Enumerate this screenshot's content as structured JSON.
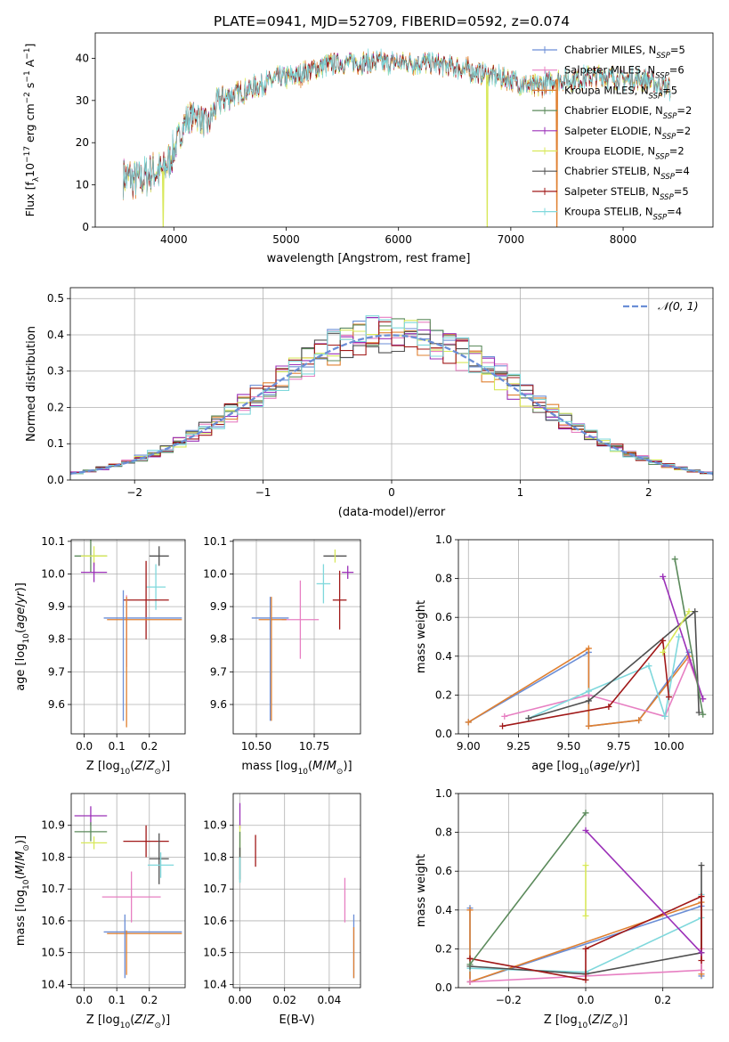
{
  "figure_title": "PLATE=0941, MJD=52709, FIBERID=0592, z=0.074",
  "colors": {
    "Chabrier MILES": "#6b8ed6",
    "Salpeter MILES": "#e77fc2",
    "Kroupa MILES": "#e08030",
    "Chabrier ELODIE": "#5b8a5b",
    "Salpeter ELODIE": "#9b30b8",
    "Kroupa ELODIE": "#d8e85a",
    "Chabrier STELIB": "#505050",
    "Salpeter STELIB": "#a01818",
    "Kroupa STELIB": "#7fd8dc"
  },
  "chart_data": [
    {
      "id": "spectrum",
      "type": "line",
      "xlabel": "wavelength [Angstrom, rest frame]",
      "ylabel": "Flux [f",
      "xlim": [
        3300,
        8800
      ],
      "ylim": [
        0,
        46
      ],
      "xticks": [
        4000,
        5000,
        6000,
        7000,
        8000
      ],
      "yticks": [
        0,
        10,
        20,
        30,
        40
      ],
      "legend": "top-right",
      "series": [
        {
          "name": "Chabrier MILES, N",
          "nssp": "=5",
          "color": "#6b8ed6"
        },
        {
          "name": "Salpeter MILES, N",
          "nssp": "=6",
          "color": "#e77fc2"
        },
        {
          "name": "Kroupa MILES, N",
          "nssp": "=5",
          "color": "#e08030"
        },
        {
          "name": "Chabrier ELODIE, N",
          "nssp": "=2",
          "color": "#5b8a5b"
        },
        {
          "name": "Salpeter ELODIE, N",
          "nssp": "=2",
          "color": "#9b30b8"
        },
        {
          "name": "Kroupa ELODIE, N",
          "nssp": "=2",
          "color": "#d8e85a"
        },
        {
          "name": "Chabrier STELIB, N",
          "nssp": "=4",
          "color": "#505050"
        },
        {
          "name": "Salpeter STELIB, N",
          "nssp": "=5",
          "color": "#a01818"
        },
        {
          "name": "Kroupa STELIB, N",
          "nssp": "=4",
          "color": "#7fd8dc"
        }
      ],
      "continuum": [
        [
          3550,
          12
        ],
        [
          3700,
          11
        ],
        [
          3800,
          13
        ],
        [
          3900,
          13
        ],
        [
          4000,
          18
        ],
        [
          4100,
          25
        ],
        [
          4200,
          27
        ],
        [
          4300,
          24
        ],
        [
          4400,
          30
        ],
        [
          4500,
          31
        ],
        [
          4700,
          33
        ],
        [
          4900,
          35
        ],
        [
          5100,
          36
        ],
        [
          5300,
          38
        ],
        [
          5500,
          39
        ],
        [
          5800,
          39
        ],
        [
          6000,
          39
        ],
        [
          6200,
          39
        ],
        [
          6500,
          38
        ],
        [
          6800,
          36
        ],
        [
          7000,
          35
        ],
        [
          7200,
          33
        ],
        [
          7400,
          35
        ],
        [
          7600,
          35
        ],
        [
          7800,
          36
        ],
        [
          8000,
          35
        ],
        [
          8200,
          35
        ],
        [
          8400,
          33
        ]
      ],
      "spikes": [
        [
          3905,
          0,
          "#d8e85a"
        ],
        [
          6790,
          0,
          "#d8e85a"
        ],
        [
          7410,
          0,
          "#e08030"
        ]
      ]
    },
    {
      "id": "residuals",
      "type": "line",
      "xlabel": "(data-model)/error",
      "ylabel": "Normed distribution",
      "xlim": [
        -2.5,
        2.5
      ],
      "ylim": [
        0,
        0.53
      ],
      "xticks": [
        -2,
        -1,
        0,
        1,
        2
      ],
      "xticklabels": [
        "−2",
        "−1",
        "0",
        "1",
        "2"
      ],
      "yticks": [
        0.0,
        0.1,
        0.2,
        0.3,
        0.4,
        0.5
      ],
      "yticklabels": [
        "0.0",
        "0.1",
        "0.2",
        "0.3",
        "0.4",
        "0.5"
      ],
      "legend_label": "𝒩(0, 1)",
      "legend": "top-right",
      "gaussian_color": "#6b8ed6"
    },
    {
      "id": "age-Z",
      "type": "scatter",
      "xlabel": "Z [log",
      "ylabel": "age  [log",
      "xlim": [
        -0.04,
        0.31
      ],
      "ylim": [
        9.51,
        10.105
      ],
      "xticks": [
        0.0,
        0.1,
        0.2
      ],
      "xticklabels": [
        "0.0",
        "0.1",
        "0.2"
      ],
      "yticks": [
        9.6,
        9.7,
        9.8,
        9.9,
        10.0,
        10.1
      ],
      "yticklabels": [
        "9.6",
        "9.7",
        "9.8",
        "9.9",
        "10.0",
        "10.1"
      ],
      "points": [
        {
          "x": 0.02,
          "y": 10.055,
          "xerr": 0.05,
          "yerr": 0.05,
          "color": "#5b8a5b"
        },
        {
          "x": 0.03,
          "y": 10.055,
          "xerr": 0.04,
          "yerr": 0.03,
          "color": "#d8e85a"
        },
        {
          "x": 0.03,
          "y": 10.005,
          "xerr": 0.04,
          "yerr": 0.03,
          "color": "#9b30b8"
        },
        {
          "x": 0.23,
          "y": 10.055,
          "xerr": 0.03,
          "yerr": 0.03,
          "color": "#505050"
        },
        {
          "x": 0.22,
          "y": 9.96,
          "xerr": 0.03,
          "yerr": 0.07,
          "color": "#7fd8dc"
        },
        {
          "x": 0.19,
          "y": 9.92,
          "xerr": 0.07,
          "yerr": 0.12,
          "color": "#a01818"
        },
        {
          "x": 0.18,
          "y": 9.865,
          "xerr": 0.12,
          "yerr": 0.0,
          "color": "#6b8ed6"
        },
        {
          "x": 0.13,
          "y": 9.825,
          "xerr": 0.0,
          "yerr": 0.11,
          "color": "#e77fc2"
        },
        {
          "x": 0.185,
          "y": 9.86,
          "xerr": 0.115,
          "yerr": 0.0,
          "color": "#e08030"
        },
        {
          "x": 0.12,
          "y": 9.75,
          "xerr": 0.0,
          "yerr": 0.2,
          "color": "#6b8ed6"
        },
        {
          "x": 0.13,
          "y": 9.73,
          "xerr": 0.0,
          "yerr": 0.2,
          "color": "#e08030"
        }
      ]
    },
    {
      "id": "age-mass",
      "type": "scatter",
      "xlabel": "mass [log",
      "ylabel": "",
      "xlim": [
        10.4,
        10.95
      ],
      "ylim": [
        9.51,
        10.105
      ],
      "xticks": [
        10.5,
        10.75
      ],
      "xticklabels": [
        "10.50",
        "10.75"
      ],
      "yticks": [
        9.6,
        9.7,
        9.8,
        9.9,
        10.0,
        10.1
      ],
      "yticklabels": [
        "9.6",
        "9.7",
        "9.8",
        "9.9",
        "10.0",
        "10.1"
      ],
      "points": [
        {
          "x": 10.84,
          "y": 10.055,
          "xerr": 0.05,
          "yerr": 0.0,
          "color": "#505050"
        },
        {
          "x": 10.84,
          "y": 10.055,
          "xerr": 0.0,
          "yerr": 0.02,
          "color": "#d8e85a"
        },
        {
          "x": 10.895,
          "y": 10.005,
          "xerr": 0.025,
          "yerr": 0.02,
          "color": "#9b30b8"
        },
        {
          "x": 10.79,
          "y": 9.97,
          "xerr": 0.03,
          "yerr": 0.06,
          "color": "#7fd8dc"
        },
        {
          "x": 10.86,
          "y": 9.92,
          "xerr": 0.03,
          "yerr": 0.09,
          "color": "#a01818"
        },
        {
          "x": 10.69,
          "y": 9.86,
          "xerr": 0.08,
          "yerr": 0.12,
          "color": "#e77fc2"
        },
        {
          "x": 10.56,
          "y": 9.865,
          "xerr": 0.08,
          "yerr": 0.0,
          "color": "#6b8ed6"
        },
        {
          "x": 10.57,
          "y": 9.86,
          "xerr": 0.06,
          "yerr": 0.0,
          "color": "#e08030"
        },
        {
          "x": 10.56,
          "y": 9.74,
          "xerr": 0.0,
          "yerr": 0.19,
          "color": "#6b8ed6"
        },
        {
          "x": 10.565,
          "y": 9.74,
          "xerr": 0.0,
          "yerr": 0.19,
          "color": "#e08030"
        }
      ]
    },
    {
      "id": "weight-age",
      "type": "line",
      "xlabel": "age  [log",
      "ylabel": "mass weight",
      "xlim": [
        8.95,
        10.22
      ],
      "ylim": [
        0,
        1
      ],
      "xticks": [
        9.0,
        9.25,
        9.5,
        9.75,
        10.0
      ],
      "xticklabels": [
        "9.00",
        "9.25",
        "9.50",
        "9.75",
        "10.00"
      ],
      "yticks": [
        0,
        0.2,
        0.4,
        0.6,
        0.8,
        1.0
      ],
      "yticklabels": [
        "0.0",
        "0.2",
        "0.4",
        "0.6",
        "0.8",
        "1.0"
      ],
      "series": [
        {
          "color": "#6b8ed6",
          "points": [
            [
              9.0,
              0.06
            ],
            [
              9.6,
              0.42
            ],
            [
              9.6,
              0.04
            ],
            [
              9.85,
              0.07
            ],
            [
              10.1,
              0.42
            ]
          ]
        },
        {
          "color": "#e08030",
          "points": [
            [
              9.0,
              0.06
            ],
            [
              9.6,
              0.44
            ],
            [
              9.6,
              0.04
            ],
            [
              9.85,
              0.07
            ],
            [
              10.1,
              0.4
            ]
          ]
        },
        {
          "color": "#e77fc2",
          "points": [
            [
              9.18,
              0.09
            ],
            [
              9.6,
              0.2
            ],
            [
              9.98,
              0.09
            ],
            [
              10.1,
              0.38
            ],
            [
              10.17,
              0.18
            ]
          ]
        },
        {
          "color": "#7fd8dc",
          "points": [
            [
              9.3,
              0.08
            ],
            [
              9.6,
              0.22
            ],
            [
              9.9,
              0.35
            ],
            [
              9.98,
              0.09
            ],
            [
              10.05,
              0.5
            ]
          ]
        },
        {
          "color": "#505050",
          "points": [
            [
              9.3,
              0.08
            ],
            [
              9.6,
              0.17
            ],
            [
              10.13,
              0.63
            ],
            [
              10.15,
              0.11
            ]
          ]
        },
        {
          "color": "#a01818",
          "points": [
            [
              9.17,
              0.04
            ],
            [
              9.7,
              0.14
            ],
            [
              9.97,
              0.48
            ],
            [
              10.0,
              0.19
            ]
          ]
        },
        {
          "color": "#9b30b8",
          "points": [
            [
              9.97,
              0.81
            ],
            [
              10.17,
              0.18
            ]
          ]
        },
        {
          "color": "#5b8a5b",
          "points": [
            [
              10.03,
              0.9
            ],
            [
              10.17,
              0.1
            ]
          ]
        },
        {
          "color": "#d8e85a",
          "points": [
            [
              9.97,
              0.42
            ],
            [
              10.1,
              0.63
            ]
          ]
        }
      ]
    },
    {
      "id": "mass-Z",
      "type": "scatter",
      "xlabel": "Z [log",
      "ylabel": "mass [log",
      "xlim": [
        -0.04,
        0.31
      ],
      "ylim": [
        10.39,
        11.0
      ],
      "xticks": [
        0.0,
        0.1,
        0.2
      ],
      "xticklabels": [
        "0.0",
        "0.1",
        "0.2"
      ],
      "yticks": [
        10.4,
        10.5,
        10.6,
        10.7,
        10.8,
        10.9
      ],
      "yticklabels": [
        "10.4",
        "10.5",
        "10.6",
        "10.7",
        "10.8",
        "10.9"
      ],
      "points": [
        {
          "x": 0.02,
          "y": 10.93,
          "xerr": 0.05,
          "yerr": 0.03,
          "color": "#9b30b8"
        },
        {
          "x": 0.02,
          "y": 10.88,
          "xerr": 0.05,
          "yerr": 0.03,
          "color": "#5b8a5b"
        },
        {
          "x": 0.03,
          "y": 10.845,
          "xerr": 0.04,
          "yerr": 0.02,
          "color": "#d8e85a"
        },
        {
          "x": 0.19,
          "y": 10.85,
          "xerr": 0.07,
          "yerr": 0.05,
          "color": "#a01818"
        },
        {
          "x": 0.23,
          "y": 10.795,
          "xerr": 0.03,
          "yerr": 0.08,
          "color": "#505050"
        },
        {
          "x": 0.235,
          "y": 10.775,
          "xerr": 0.04,
          "yerr": 0.04,
          "color": "#7fd8dc"
        },
        {
          "x": 0.145,
          "y": 10.675,
          "xerr": 0.09,
          "yerr": 0.08,
          "color": "#e77fc2"
        },
        {
          "x": 0.18,
          "y": 10.565,
          "xerr": 0.12,
          "yerr": 0.0,
          "color": "#6b8ed6"
        },
        {
          "x": 0.185,
          "y": 10.56,
          "xerr": 0.115,
          "yerr": 0.0,
          "color": "#e08030"
        },
        {
          "x": 0.125,
          "y": 10.52,
          "xerr": 0.0,
          "yerr": 0.1,
          "color": "#6b8ed6"
        },
        {
          "x": 0.13,
          "y": 10.5,
          "xerr": 0.0,
          "yerr": 0.07,
          "color": "#e08030"
        }
      ]
    },
    {
      "id": "mass-ebv",
      "type": "scatter",
      "xlabel": "E(B-V)",
      "ylabel": "",
      "xlim": [
        -0.003,
        0.054
      ],
      "ylim": [
        10.39,
        11.0
      ],
      "xticks": [
        0.0,
        0.02,
        0.04
      ],
      "xticklabels": [
        "0.00",
        "0.02",
        "0.04"
      ],
      "yticks": [
        10.4,
        10.5,
        10.6,
        10.7,
        10.8,
        10.9
      ],
      "yticklabels": [
        "10.4",
        "10.5",
        "10.6",
        "10.7",
        "10.8",
        "10.9"
      ],
      "points": [
        {
          "x": 0.0,
          "y": 10.93,
          "xerr": 0.0,
          "yerr": 0.04,
          "color": "#9b30b8"
        },
        {
          "x": 0.0,
          "y": 10.85,
          "xerr": 0.0,
          "yerr": 0.05,
          "color": "#d8e85a"
        },
        {
          "x": 0.0,
          "y": 10.8,
          "xerr": 0.0,
          "yerr": 0.08,
          "color": "#5b8a5b"
        },
        {
          "x": 0.0,
          "y": 10.78,
          "xerr": 0.0,
          "yerr": 0.05,
          "color": "#505050"
        },
        {
          "x": 0.0,
          "y": 10.76,
          "xerr": 0.0,
          "yerr": 0.04,
          "color": "#7fd8dc"
        },
        {
          "x": 0.007,
          "y": 10.82,
          "xerr": 0.0,
          "yerr": 0.05,
          "color": "#a01818"
        },
        {
          "x": 0.047,
          "y": 10.665,
          "xerr": 0.0,
          "yerr": 0.07,
          "color": "#e77fc2"
        },
        {
          "x": 0.051,
          "y": 10.52,
          "xerr": 0.0,
          "yerr": 0.1,
          "color": "#6b8ed6"
        },
        {
          "x": 0.051,
          "y": 10.5,
          "xerr": 0.0,
          "yerr": 0.08,
          "color": "#e08030"
        }
      ]
    },
    {
      "id": "weight-Z",
      "type": "line",
      "xlabel": "Z [log",
      "ylabel": "mass weight",
      "xlim": [
        -0.33,
        0.33
      ],
      "ylim": [
        0,
        1
      ],
      "xticks": [
        -0.2,
        0.0,
        0.2
      ],
      "xticklabels": [
        "−0.2",
        "0.0",
        "0.2"
      ],
      "yticks": [
        0,
        0.2,
        0.4,
        0.6,
        0.8,
        1.0
      ],
      "yticklabels": [
        "0.0",
        "0.2",
        "0.4",
        "0.6",
        "0.8",
        "1.0"
      ],
      "series": [
        {
          "color": "#6b8ed6",
          "points": [
            [
              -0.3,
              0.41
            ],
            [
              -0.3,
              0.03
            ],
            [
              0.3,
              0.42
            ],
            [
              0.3,
              0.06
            ]
          ]
        },
        {
          "color": "#e08030",
          "points": [
            [
              -0.3,
              0.4
            ],
            [
              -0.3,
              0.03
            ],
            [
              0.3,
              0.44
            ],
            [
              0.3,
              0.07
            ]
          ]
        },
        {
          "color": "#e77fc2",
          "points": [
            [
              -0.3,
              0.03
            ],
            [
              0.3,
              0.09
            ],
            [
              0.3,
              0.2
            ]
          ]
        },
        {
          "color": "#7fd8dc",
          "points": [
            [
              -0.3,
              0.1
            ],
            [
              0.0,
              0.08
            ],
            [
              0.3,
              0.36
            ],
            [
              0.3,
              0.48
            ]
          ]
        },
        {
          "color": "#505050",
          "points": [
            [
              -0.3,
              0.11
            ],
            [
              0.0,
              0.07
            ],
            [
              0.3,
              0.18
            ],
            [
              0.3,
              0.63
            ]
          ]
        },
        {
          "color": "#a01818",
          "points": [
            [
              -0.3,
              0.15
            ],
            [
              0.0,
              0.04
            ],
            [
              0.0,
              0.2
            ],
            [
              0.3,
              0.47
            ],
            [
              0.3,
              0.14
            ]
          ]
        },
        {
          "color": "#9b30b8",
          "points": [
            [
              0.0,
              0.81
            ],
            [
              0.3,
              0.18
            ]
          ]
        },
        {
          "color": "#5b8a5b",
          "points": [
            [
              -0.3,
              0.12
            ],
            [
              0.0,
              0.9
            ]
          ]
        },
        {
          "color": "#d8e85a",
          "points": [
            [
              0.0,
              0.37
            ],
            [
              0.0,
              0.63
            ]
          ]
        }
      ]
    }
  ]
}
